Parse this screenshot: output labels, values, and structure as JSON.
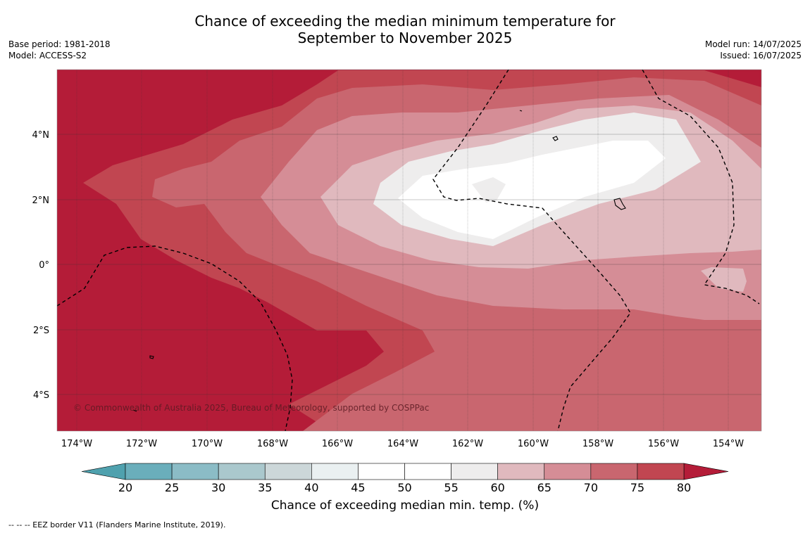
{
  "title_line1": "Chance of exceeding the median minimum temperature for",
  "title_line2": "September to November 2025",
  "base_period": "Base period: 1981-2018",
  "model": "Model: ACCESS-S2",
  "model_run": "Model run: 14/07/2025",
  "issued": "Issued: 16/07/2025",
  "copyright": "© Commonwealth of Australia 2025, Bureau of Meteorology, supported by COSPPac",
  "colorbar_label": "Chance of exceeding median min. temp. (%)",
  "footnote": "--  --  -- EEZ border V11 (Flanders Marine Institute, 2019).",
  "longitude_labels": [
    "174°W",
    "172°W",
    "170°W",
    "168°W",
    "166°W",
    "164°W",
    "162°W",
    "160°W",
    "158°W",
    "156°W",
    "154°W"
  ],
  "latitude_labels": [
    "4°N",
    "2°N",
    "0°",
    "2°S",
    "4°S"
  ],
  "colorbar": {
    "ticks": [
      "20",
      "25",
      "30",
      "35",
      "40",
      "45",
      "50",
      "55",
      "60",
      "65",
      "70",
      "75",
      "80"
    ],
    "colors": [
      "#6aaebb",
      "#8bbcc6",
      "#aac8cd",
      "#ccd7d9",
      "#eaf0f1",
      "#ffffff",
      "#ffffff",
      "#eeeded",
      "#e0b9be",
      "#d58d96",
      "#c9666f",
      "#c14651"
    ],
    "under_color": "#4fa1ae",
    "over_color": "#b41c38"
  },
  "colors": {
    "c80": "#b41c38",
    "c75": "#c14651",
    "c70": "#c9666f",
    "c65": "#d58d96",
    "c60": "#e0b9be",
    "c55": "#eeeded",
    "c50": "#ffffff"
  }
}
